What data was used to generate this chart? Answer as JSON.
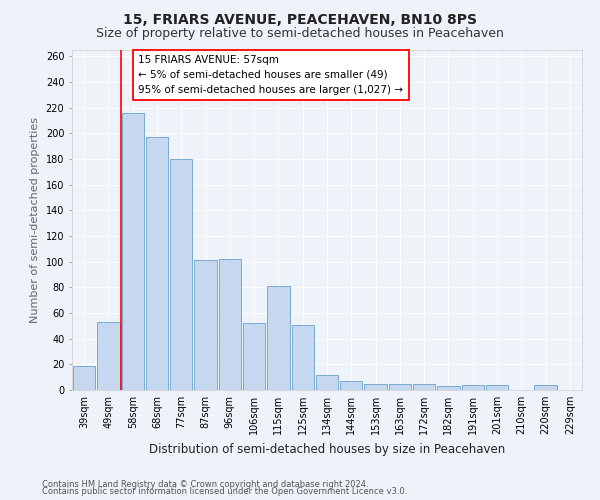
{
  "title1": "15, FRIARS AVENUE, PEACEHAVEN, BN10 8PS",
  "title2": "Size of property relative to semi-detached houses in Peacehaven",
  "xlabel": "Distribution of semi-detached houses by size in Peacehaven",
  "ylabel": "Number of semi-detached properties",
  "categories": [
    "39sqm",
    "49sqm",
    "58sqm",
    "68sqm",
    "77sqm",
    "87sqm",
    "96sqm",
    "106sqm",
    "115sqm",
    "125sqm",
    "134sqm",
    "144sqm",
    "153sqm",
    "163sqm",
    "172sqm",
    "182sqm",
    "191sqm",
    "201sqm",
    "210sqm",
    "220sqm",
    "229sqm"
  ],
  "values": [
    19,
    53,
    216,
    197,
    180,
    101,
    102,
    52,
    81,
    51,
    12,
    7,
    5,
    5,
    5,
    3,
    4,
    4,
    0,
    4,
    0
  ],
  "bar_color": "#c5d8f0",
  "bar_edgecolor": "#7aaad0",
  "red_line_x": 1.5,
  "annotation_line1": "15 FRIARS AVENUE: 57sqm",
  "annotation_line2": "← 5% of semi-detached houses are smaller (49)",
  "annotation_line3": "95% of semi-detached houses are larger (1,027) →",
  "ylim": [
    0,
    265
  ],
  "yticks": [
    0,
    20,
    40,
    60,
    80,
    100,
    120,
    140,
    160,
    180,
    200,
    220,
    240,
    260
  ],
  "footnote1": "Contains HM Land Registry data © Crown copyright and database right 2024.",
  "footnote2": "Contains public sector information licensed under the Open Government Licence v3.0.",
  "background_color": "#eef2f9",
  "grid_color": "#ffffff",
  "title_fontsize": 10,
  "subtitle_fontsize": 9,
  "axis_label_fontsize": 8,
  "tick_fontsize": 7,
  "annotation_fontsize": 7.5,
  "footnote_fontsize": 6
}
